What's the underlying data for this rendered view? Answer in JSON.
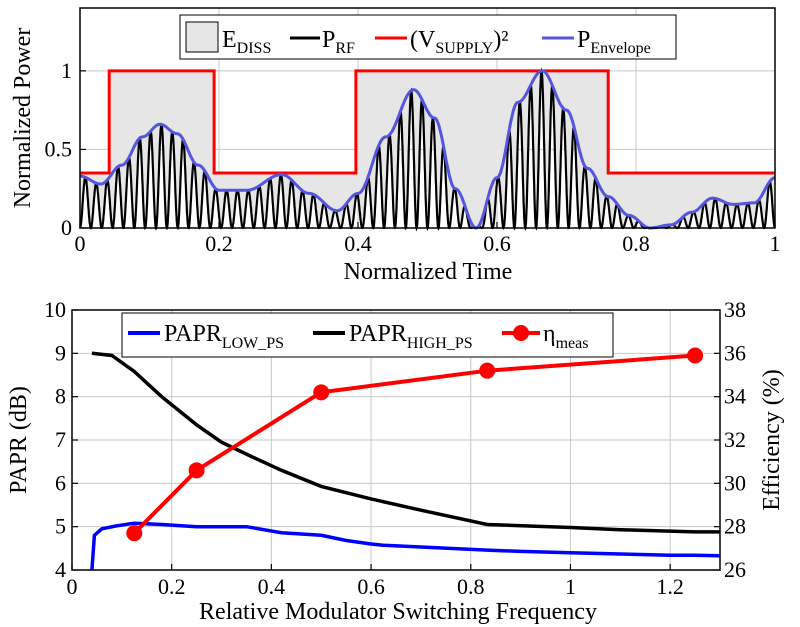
{
  "chart_data": [
    {
      "type": "line",
      "name": "top",
      "xlabel": "Normalized Time",
      "ylabel": "Normalized Power",
      "xlim": [
        0,
        1
      ],
      "ylim": [
        0,
        1.4
      ],
      "xticks": [
        0,
        0.2,
        0.4,
        0.6,
        0.8,
        1
      ],
      "xtick_labels": [
        "0",
        "0.2",
        "0.4",
        "0.6",
        "0.8",
        "1"
      ],
      "yticks": [
        0,
        0.5,
        1
      ],
      "ytick_labels": [
        "0",
        "0.5",
        "1"
      ],
      "legend": {
        "placement": "top",
        "entries": [
          {
            "base": "E",
            "sub": "DISS",
            "sup": "",
            "color": "#e6e6e6",
            "kind": "patch"
          },
          {
            "base": "P",
            "sub": "RF",
            "sup": "",
            "color": "#000000",
            "kind": "line"
          },
          {
            "base": "(V",
            "sub": "SUPPLY",
            "sup": ")²",
            "color": "#ff0000",
            "kind": "line"
          },
          {
            "base": "P",
            "sub": "Envelope",
            "sup": "",
            "color": "#5555dd",
            "kind": "line"
          }
        ]
      },
      "series": [
        {
          "name": "(VSUPPLY)²",
          "color": "#ff0000",
          "x": [
            0,
            0.042,
            0.042,
            0.193,
            0.193,
            0.397,
            0.397,
            0.76,
            0.76,
            1
          ],
          "y": [
            0.35,
            0.35,
            1,
            1,
            0.35,
            0.35,
            1,
            1,
            0.35,
            0.35
          ]
        },
        {
          "name": "PEnvelope",
          "color": "#5555dd",
          "x": [
            0,
            0.03,
            0.06,
            0.09,
            0.115,
            0.14,
            0.17,
            0.2,
            0.24,
            0.29,
            0.33,
            0.37,
            0.4,
            0.44,
            0.48,
            0.51,
            0.54,
            0.57,
            0.6,
            0.63,
            0.665,
            0.7,
            0.73,
            0.76,
            0.79,
            0.82,
            0.85,
            0.88,
            0.91,
            0.94,
            0.97,
            1
          ],
          "y": [
            0.33,
            0.28,
            0.4,
            0.58,
            0.66,
            0.6,
            0.4,
            0.24,
            0.24,
            0.34,
            0.22,
            0.11,
            0.22,
            0.58,
            0.88,
            0.7,
            0.25,
            0.0,
            0.32,
            0.8,
            1.0,
            0.75,
            0.38,
            0.2,
            0.08,
            0.0,
            0.02,
            0.1,
            0.19,
            0.15,
            0.16,
            0.32
          ]
        }
      ],
      "rf_carrier": {
        "name": "PRF",
        "color": "#000000",
        "cycles": 64
      },
      "ediss": {
        "name": "EDISS",
        "color": "#e6e6e6",
        "between": [
          "(VSUPPLY)²",
          "PRF"
        ]
      }
    },
    {
      "type": "line",
      "name": "bottom",
      "xlabel": "Relative Modulator Switching Frequency",
      "ylabel": "PAPR (dB)",
      "y2label": "Efficiency (%)",
      "xlim": [
        0,
        1.3
      ],
      "ylim": [
        4,
        10
      ],
      "y2lim": [
        26,
        38
      ],
      "xticks": [
        0,
        0.2,
        0.4,
        0.6,
        0.8,
        1,
        1.2
      ],
      "xtick_labels": [
        "0",
        "0.2",
        "0.4",
        "0.6",
        "0.8",
        "1",
        "1.2"
      ],
      "yticks": [
        4,
        5,
        6,
        7,
        8,
        9,
        10
      ],
      "ytick_labels": [
        "4",
        "5",
        "6",
        "7",
        "8",
        "9",
        "10"
      ],
      "y2ticks": [
        26,
        28,
        30,
        32,
        34,
        36,
        38
      ],
      "y2tick_labels": [
        "26",
        "28",
        "30",
        "32",
        "34",
        "36",
        "38"
      ],
      "legend": {
        "placement": "top",
        "entries": [
          {
            "base": "PAPR",
            "sub": "LOW_PS",
            "sup": "",
            "color": "#0000ff",
            "kind": "line"
          },
          {
            "base": "PAPR",
            "sub": "HIGH_PS",
            "sup": "",
            "color": "#000000",
            "kind": "line"
          },
          {
            "base": "η",
            "sub": "meas",
            "sup": "",
            "color": "#ff0000",
            "kind": "marker"
          }
        ]
      },
      "series": [
        {
          "name": "PAPR_LOW_PS",
          "color": "#0000ff",
          "axis": "left",
          "x": [
            0.04,
            0.045,
            0.06,
            0.09,
            0.125,
            0.18,
            0.25,
            0.3,
            0.35,
            0.42,
            0.5,
            0.55,
            0.6,
            0.625,
            0.7,
            0.833,
            0.9,
            1.0,
            1.1,
            1.2,
            1.25,
            1.3
          ],
          "y": [
            3.95,
            4.8,
            4.95,
            5.02,
            5.08,
            5.05,
            5.0,
            5.0,
            5.0,
            4.86,
            4.8,
            4.68,
            4.6,
            4.57,
            4.53,
            4.46,
            4.43,
            4.4,
            4.37,
            4.34,
            4.34,
            4.33
          ]
        },
        {
          "name": "PAPR_HIGH_PS",
          "color": "#000000",
          "axis": "left",
          "x": [
            0.04,
            0.08,
            0.125,
            0.18,
            0.25,
            0.3,
            0.36,
            0.42,
            0.5,
            0.6,
            0.7,
            0.833,
            1.0,
            1.1,
            1.25,
            1.3
          ],
          "y": [
            9.0,
            8.95,
            8.58,
            8.0,
            7.35,
            6.95,
            6.62,
            6.3,
            5.93,
            5.64,
            5.38,
            5.05,
            4.98,
            4.93,
            4.88,
            4.88
          ]
        },
        {
          "name": "η_meas",
          "color": "#ff0000",
          "axis": "right",
          "markers": true,
          "x": [
            0.125,
            0.25,
            0.5,
            0.833,
            1.25
          ],
          "y": [
            27.7,
            30.6,
            34.2,
            35.2,
            35.9
          ]
        }
      ]
    }
  ]
}
